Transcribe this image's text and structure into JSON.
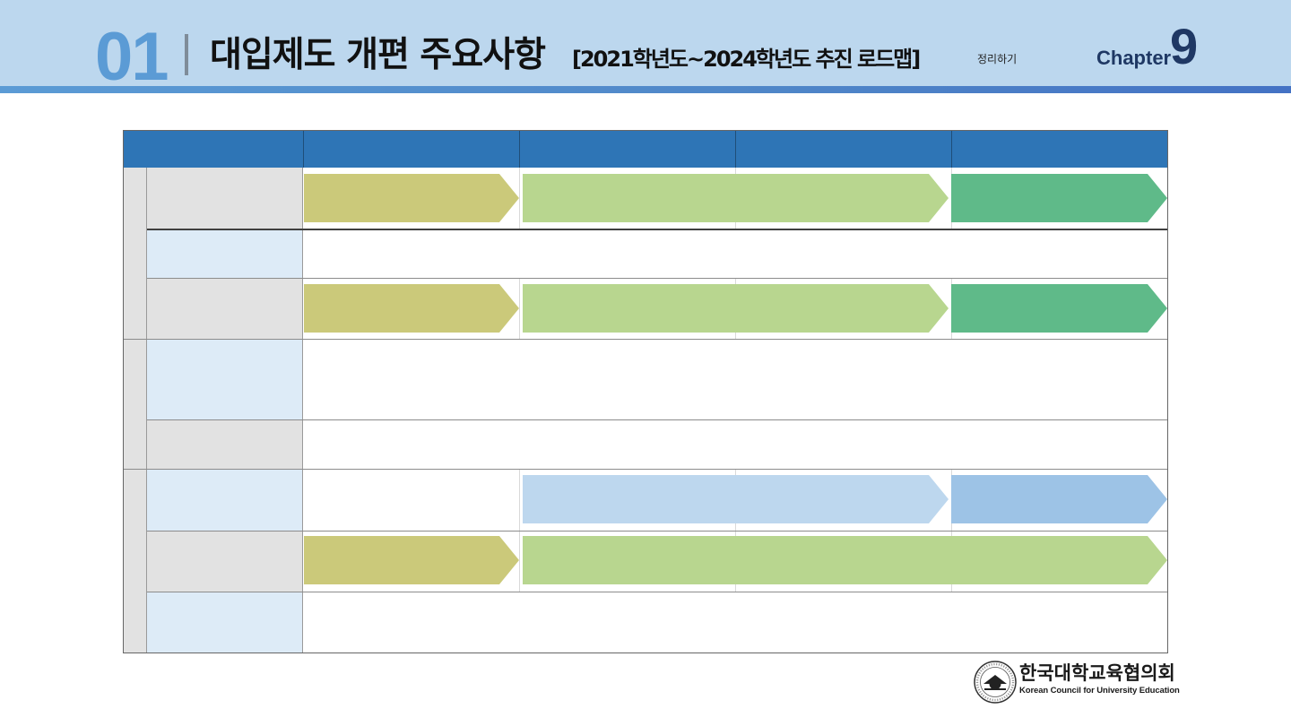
{
  "header": {
    "section_number": "01",
    "title": "대입제도 개편 주요사항",
    "subtitle": "[2021학년도~2024학년도 추진 로드맵]",
    "summary_label": "정리하기",
    "chapter_word": "Chapter",
    "chapter_number": "9"
  },
  "colors": {
    "header_band": "#bcd7ee",
    "header_stripe": "#5b9bd5",
    "section_number": "#5b9bd5",
    "table_header": "#2e75b6",
    "label_grey": "#e2e2e2",
    "label_blue": "#ddebf7",
    "arrow_olive": "#cbc97a",
    "arrow_light_green": "#b8d68f",
    "arrow_green": "#5fba89",
    "arrow_light_blue": "#bdd7ee",
    "arrow_mid_blue": "#9dc3e6"
  },
  "logo": {
    "name_ko": "한국대학교육협의회",
    "name_en": "Korean Council for University Education",
    "seal_text": "한국대학교육협의회 Korean Council for University Education"
  }
}
